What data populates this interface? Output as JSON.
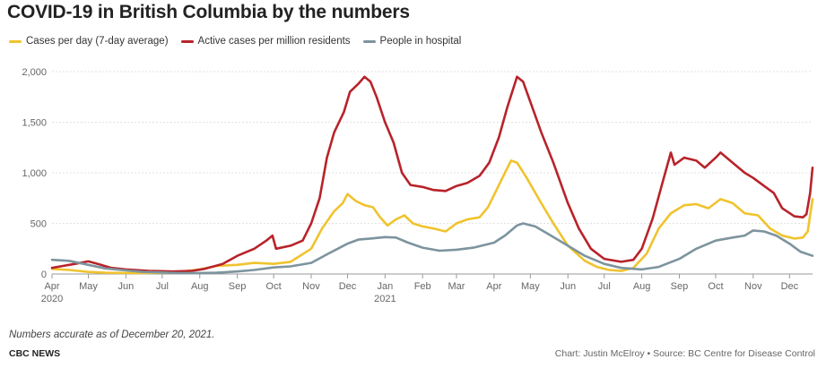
{
  "title": "COVID-19 in British Columbia by the numbers",
  "note": "Numbers accurate as of  December 20, 2021.",
  "brand": "CBC NEWS",
  "credit": "Chart: Justin McElroy • Source: BC Centre for Disease Control",
  "colors": {
    "cases": "#f0c32e",
    "active": "#b8232a",
    "hospital": "#7d949e",
    "grid": "#e2e2e2",
    "axis": "#999999"
  },
  "chart_data": {
    "type": "line",
    "xlabel": "",
    "ylabel": "",
    "ylim": [
      0,
      2000
    ],
    "xlim": [
      "2020-04-01",
      "2021-12-20"
    ],
    "grid": "horizontal",
    "legend": "top-left",
    "y_ticks": [
      "0",
      "500",
      "1,000",
      "1,500",
      "2,000"
    ],
    "x_ticks": [
      {
        "date": "2020-04-01",
        "label": "Apr",
        "sub": "2020"
      },
      {
        "date": "2020-05-01",
        "label": "May"
      },
      {
        "date": "2020-06-01",
        "label": "Jun"
      },
      {
        "date": "2020-07-01",
        "label": "Jul"
      },
      {
        "date": "2020-08-01",
        "label": "Aug"
      },
      {
        "date": "2020-09-01",
        "label": "Sep"
      },
      {
        "date": "2020-10-01",
        "label": "Oct"
      },
      {
        "date": "2020-11-01",
        "label": "Nov"
      },
      {
        "date": "2020-12-01",
        "label": "Dec"
      },
      {
        "date": "2021-01-01",
        "label": "Jan",
        "sub": "2021"
      },
      {
        "date": "2021-02-01",
        "label": "Feb"
      },
      {
        "date": "2021-03-01",
        "label": "Mar"
      },
      {
        "date": "2021-04-01",
        "label": "Apr"
      },
      {
        "date": "2021-05-01",
        "label": "May"
      },
      {
        "date": "2021-06-01",
        "label": "Jun"
      },
      {
        "date": "2021-07-01",
        "label": "Jul"
      },
      {
        "date": "2021-08-01",
        "label": "Aug"
      },
      {
        "date": "2021-09-01",
        "label": "Sep"
      },
      {
        "date": "2021-10-01",
        "label": "Oct"
      },
      {
        "date": "2021-11-01",
        "label": "Nov"
      },
      {
        "date": "2021-12-01",
        "label": "Dec"
      }
    ],
    "series": [
      {
        "name": "Cases per day (7-day average)",
        "color": "#f0c32e",
        "points": [
          [
            "2020-04-01",
            50
          ],
          [
            "2020-04-15",
            40
          ],
          [
            "2020-05-01",
            20
          ],
          [
            "2020-05-15",
            12
          ],
          [
            "2020-06-01",
            10
          ],
          [
            "2020-06-15",
            10
          ],
          [
            "2020-07-01",
            12
          ],
          [
            "2020-07-15",
            20
          ],
          [
            "2020-08-01",
            45
          ],
          [
            "2020-08-15",
            80
          ],
          [
            "2020-09-01",
            90
          ],
          [
            "2020-09-15",
            110
          ],
          [
            "2020-10-01",
            100
          ],
          [
            "2020-10-15",
            120
          ],
          [
            "2020-11-01",
            250
          ],
          [
            "2020-11-10",
            450
          ],
          [
            "2020-11-20",
            620
          ],
          [
            "2020-11-27",
            700
          ],
          [
            "2020-12-01",
            790
          ],
          [
            "2020-12-08",
            720
          ],
          [
            "2020-12-15",
            680
          ],
          [
            "2020-12-22",
            660
          ],
          [
            "2020-12-28",
            560
          ],
          [
            "2021-01-03",
            480
          ],
          [
            "2021-01-10",
            540
          ],
          [
            "2021-01-17",
            580
          ],
          [
            "2021-01-24",
            500
          ],
          [
            "2021-02-01",
            470
          ],
          [
            "2021-02-10",
            450
          ],
          [
            "2021-02-20",
            420
          ],
          [
            "2021-03-01",
            500
          ],
          [
            "2021-03-10",
            540
          ],
          [
            "2021-03-20",
            560
          ],
          [
            "2021-03-27",
            660
          ],
          [
            "2021-04-03",
            830
          ],
          [
            "2021-04-10",
            1000
          ],
          [
            "2021-04-15",
            1120
          ],
          [
            "2021-04-20",
            1100
          ],
          [
            "2021-04-28",
            950
          ],
          [
            "2021-05-10",
            700
          ],
          [
            "2021-05-20",
            500
          ],
          [
            "2021-06-01",
            280
          ],
          [
            "2021-06-15",
            130
          ],
          [
            "2021-06-25",
            70
          ],
          [
            "2021-07-05",
            40
          ],
          [
            "2021-07-15",
            30
          ],
          [
            "2021-07-25",
            60
          ],
          [
            "2021-08-05",
            200
          ],
          [
            "2021-08-15",
            450
          ],
          [
            "2021-08-25",
            600
          ],
          [
            "2021-09-05",
            680
          ],
          [
            "2021-09-15",
            690
          ],
          [
            "2021-09-25",
            650
          ],
          [
            "2021-10-05",
            740
          ],
          [
            "2021-10-15",
            700
          ],
          [
            "2021-10-25",
            600
          ],
          [
            "2021-11-05",
            580
          ],
          [
            "2021-11-15",
            450
          ],
          [
            "2021-11-25",
            380
          ],
          [
            "2021-12-05",
            350
          ],
          [
            "2021-12-12",
            360
          ],
          [
            "2021-12-16",
            420
          ],
          [
            "2021-12-20",
            740
          ]
        ]
      },
      {
        "name": "Active cases per million residents",
        "color": "#b8232a",
        "points": [
          [
            "2020-04-01",
            60
          ],
          [
            "2020-04-10",
            80
          ],
          [
            "2020-04-20",
            100
          ],
          [
            "2020-05-01",
            125
          ],
          [
            "2020-05-10",
            95
          ],
          [
            "2020-05-20",
            60
          ],
          [
            "2020-06-01",
            45
          ],
          [
            "2020-06-20",
            30
          ],
          [
            "2020-07-10",
            25
          ],
          [
            "2020-07-25",
            30
          ],
          [
            "2020-08-05",
            50
          ],
          [
            "2020-08-20",
            100
          ],
          [
            "2020-09-01",
            180
          ],
          [
            "2020-09-15",
            250
          ],
          [
            "2020-09-25",
            330
          ],
          [
            "2020-09-30",
            380
          ],
          [
            "2020-10-03",
            250
          ],
          [
            "2020-10-15",
            280
          ],
          [
            "2020-10-25",
            330
          ],
          [
            "2020-11-01",
            500
          ],
          [
            "2020-11-08",
            750
          ],
          [
            "2020-11-14",
            1150
          ],
          [
            "2020-11-20",
            1400
          ],
          [
            "2020-11-28",
            1600
          ],
          [
            "2020-12-03",
            1800
          ],
          [
            "2020-12-10",
            1880
          ],
          [
            "2020-12-15",
            1950
          ],
          [
            "2020-12-20",
            1900
          ],
          [
            "2020-12-25",
            1750
          ],
          [
            "2021-01-01",
            1500
          ],
          [
            "2021-01-08",
            1300
          ],
          [
            "2021-01-15",
            1000
          ],
          [
            "2021-01-22",
            880
          ],
          [
            "2021-02-01",
            860
          ],
          [
            "2021-02-10",
            830
          ],
          [
            "2021-02-20",
            820
          ],
          [
            "2021-03-01",
            870
          ],
          [
            "2021-03-10",
            900
          ],
          [
            "2021-03-20",
            970
          ],
          [
            "2021-03-28",
            1100
          ],
          [
            "2021-04-05",
            1350
          ],
          [
            "2021-04-12",
            1650
          ],
          [
            "2021-04-20",
            1950
          ],
          [
            "2021-04-25",
            1900
          ],
          [
            "2021-05-01",
            1700
          ],
          [
            "2021-05-10",
            1400
          ],
          [
            "2021-05-20",
            1100
          ],
          [
            "2021-06-01",
            700
          ],
          [
            "2021-06-10",
            450
          ],
          [
            "2021-06-20",
            250
          ],
          [
            "2021-07-01",
            150
          ],
          [
            "2021-07-15",
            120
          ],
          [
            "2021-07-25",
            140
          ],
          [
            "2021-08-01",
            250
          ],
          [
            "2021-08-10",
            550
          ],
          [
            "2021-08-18",
            900
          ],
          [
            "2021-08-25",
            1200
          ],
          [
            "2021-08-28",
            1080
          ],
          [
            "2021-09-05",
            1150
          ],
          [
            "2021-09-15",
            1120
          ],
          [
            "2021-09-22",
            1050
          ],
          [
            "2021-10-01",
            1150
          ],
          [
            "2021-10-05",
            1200
          ],
          [
            "2021-10-15",
            1100
          ],
          [
            "2021-10-25",
            1000
          ],
          [
            "2021-11-01",
            950
          ],
          [
            "2021-11-10",
            870
          ],
          [
            "2021-11-18",
            800
          ],
          [
            "2021-11-25",
            650
          ],
          [
            "2021-12-05",
            570
          ],
          [
            "2021-12-12",
            560
          ],
          [
            "2021-12-15",
            590
          ],
          [
            "2021-12-18",
            800
          ],
          [
            "2021-12-20",
            1050
          ]
        ]
      },
      {
        "name": "People in hospital",
        "color": "#7d949e",
        "points": [
          [
            "2020-04-01",
            140
          ],
          [
            "2020-04-15",
            130
          ],
          [
            "2020-05-01",
            90
          ],
          [
            "2020-05-15",
            55
          ],
          [
            "2020-06-01",
            35
          ],
          [
            "2020-06-15",
            20
          ],
          [
            "2020-07-01",
            15
          ],
          [
            "2020-07-15",
            8
          ],
          [
            "2020-08-01",
            10
          ],
          [
            "2020-08-15",
            12
          ],
          [
            "2020-09-01",
            25
          ],
          [
            "2020-09-15",
            40
          ],
          [
            "2020-10-01",
            65
          ],
          [
            "2020-10-15",
            75
          ],
          [
            "2020-11-01",
            110
          ],
          [
            "2020-11-15",
            200
          ],
          [
            "2020-12-01",
            300
          ],
          [
            "2020-12-10",
            340
          ],
          [
            "2020-12-20",
            350
          ],
          [
            "2021-01-01",
            365
          ],
          [
            "2021-01-10",
            360
          ],
          [
            "2021-01-20",
            310
          ],
          [
            "2021-02-01",
            260
          ],
          [
            "2021-02-15",
            230
          ],
          [
            "2021-03-01",
            240
          ],
          [
            "2021-03-15",
            260
          ],
          [
            "2021-04-01",
            310
          ],
          [
            "2021-04-10",
            380
          ],
          [
            "2021-04-20",
            480
          ],
          [
            "2021-04-25",
            500
          ],
          [
            "2021-05-05",
            470
          ],
          [
            "2021-05-15",
            400
          ],
          [
            "2021-06-01",
            280
          ],
          [
            "2021-06-15",
            180
          ],
          [
            "2021-07-01",
            100
          ],
          [
            "2021-07-15",
            60
          ],
          [
            "2021-08-01",
            45
          ],
          [
            "2021-08-15",
            70
          ],
          [
            "2021-09-01",
            150
          ],
          [
            "2021-09-15",
            250
          ],
          [
            "2021-10-01",
            330
          ],
          [
            "2021-10-15",
            360
          ],
          [
            "2021-10-25",
            380
          ],
          [
            "2021-11-01",
            430
          ],
          [
            "2021-11-10",
            420
          ],
          [
            "2021-11-20",
            380
          ],
          [
            "2021-12-01",
            300
          ],
          [
            "2021-12-10",
            220
          ],
          [
            "2021-12-20",
            180
          ]
        ]
      }
    ]
  }
}
